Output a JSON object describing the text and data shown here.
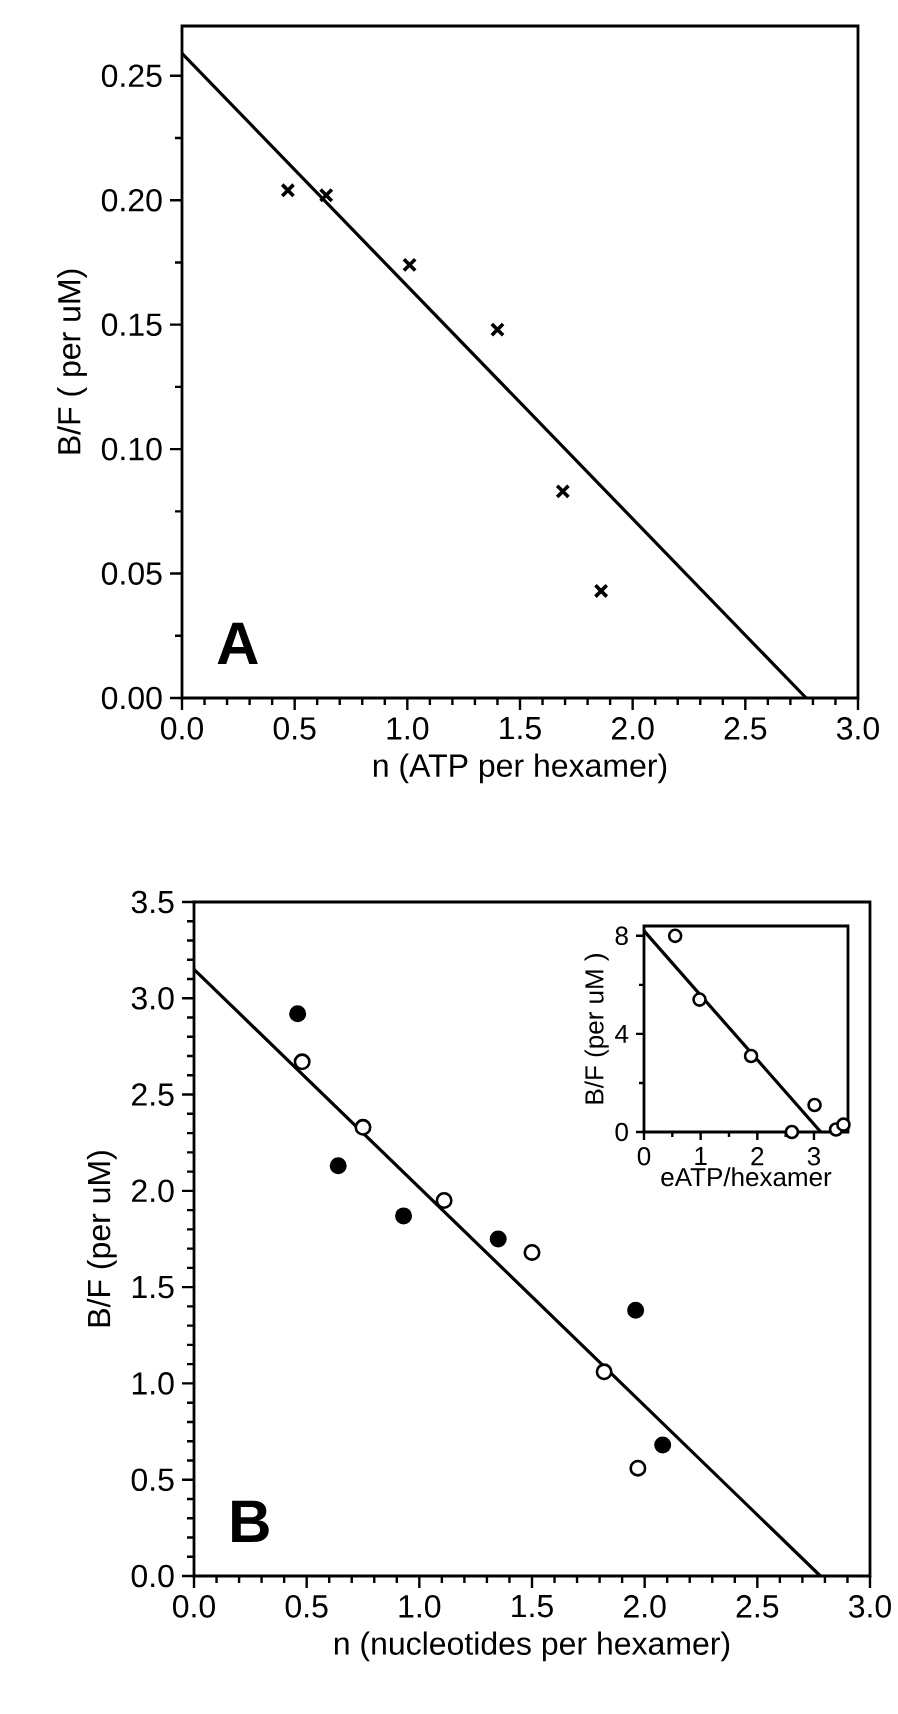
{
  "chart_data": [
    {
      "type": "scatter",
      "xlabel": "n (ATP per hexamer)",
      "ylabel": "B/F ( per uM)",
      "annotations": [
        "A"
      ],
      "xlim": [
        0,
        3
      ],
      "ylim": [
        0,
        0.27
      ],
      "xticks": [
        {
          "value": 0,
          "label": "0.0"
        },
        0.5,
        {
          "value": 1,
          "label": "1.0"
        },
        1.5,
        {
          "value": 2,
          "label": "2.0"
        },
        2.5,
        {
          "value": 3,
          "label": "3.0"
        }
      ],
      "yticks": [
        {
          "value": 0,
          "label": "0.00"
        },
        0.05,
        {
          "value": 0.1,
          "label": "0.10"
        },
        0.15,
        {
          "value": 0.2,
          "label": "0.20"
        },
        0.25
      ],
      "series": [
        {
          "color": "#000000",
          "marker": "cross",
          "x": [
            0.47,
            0.64,
            1.01,
            1.4,
            1.69,
            1.86
          ],
          "values": [
            0.204,
            0.202,
            0.174,
            0.148,
            0.083,
            0.043
          ]
        },
        {
          "type": "line",
          "color": "#000000",
          "x": [
            0,
            2.77
          ],
          "values": [
            0.259,
            0
          ]
        }
      ]
    },
    {
      "type": "scatter",
      "xlabel": "n (nucleotides per hexamer)",
      "ylabel": "B/F (per uM)",
      "annotations": [
        "B"
      ],
      "xlim": [
        0,
        3
      ],
      "ylim": [
        0,
        3.5
      ],
      "xticks": [
        {
          "value": 0,
          "label": "0.0"
        },
        0.5,
        {
          "value": 1,
          "label": "1.0"
        },
        1.5,
        {
          "value": 2,
          "label": "2.0"
        },
        2.5,
        {
          "value": 3,
          "label": "3.0"
        }
      ],
      "yticks": [
        {
          "value": 0,
          "label": "0.0"
        },
        0.5,
        {
          "value": 1,
          "label": "1.0"
        },
        1.5,
        {
          "value": 2,
          "label": "2.0"
        },
        2.5,
        {
          "value": 3,
          "label": "3.0"
        },
        3.5
      ],
      "series": [
        {
          "color": "#000000",
          "marker": "circle",
          "x": [
            0.46,
            0.64,
            0.93,
            1.35,
            1.96,
            2.08
          ],
          "values": [
            2.92,
            2.13,
            1.87,
            1.75,
            1.38,
            0.68
          ]
        },
        {
          "color": "#ffffff",
          "marker": "circle",
          "x": [
            0.48,
            0.75,
            1.11,
            1.5,
            1.82,
            1.97
          ],
          "values": [
            2.67,
            2.33,
            1.95,
            1.68,
            1.06,
            0.56
          ]
        },
        {
          "type": "line",
          "color": "#000000",
          "x": [
            0,
            2.78
          ],
          "values": [
            3.15,
            0
          ]
        }
      ]
    },
    {
      "type": "scatter",
      "xlabel": "eATP/hexamer",
      "ylabel": "B/F (per uM )",
      "xlim": [
        0,
        3.6
      ],
      "ylim": [
        0,
        8.4
      ],
      "xticks": [
        0,
        1,
        2,
        3
      ],
      "yticks": [
        0,
        4,
        8
      ],
      "series": [
        {
          "color": "#ffffff",
          "marker": "circle",
          "x": [
            0.55,
            0.98,
            1.89,
            2.61,
            3.01,
            3.39,
            3.52
          ],
          "values": [
            8.0,
            5.4,
            3.1,
            0,
            1.1,
            0.1,
            0.3
          ]
        },
        {
          "type": "line",
          "color": "#000000",
          "x": [
            0,
            3.12
          ],
          "values": [
            8.2,
            0
          ]
        }
      ]
    }
  ]
}
